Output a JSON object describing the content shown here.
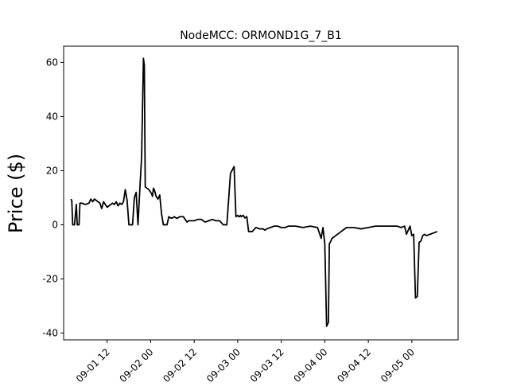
{
  "chart_data": {
    "type": "line",
    "title": "NodeMCC: ORMOND1G_7_B1",
    "xlabel": "",
    "ylabel": "Price ($)",
    "x_ticks": [
      "09-01 12",
      "09-02 00",
      "09-02 12",
      "09-03 00",
      "09-03 12",
      "09-04 00",
      "09-04 12",
      "09-05 00"
    ],
    "x_tick_values": [
      "2022-09-01 12:00",
      "2022-09-02 00:00",
      "2022-09-02 12:00",
      "2022-09-03 00:00",
      "2022-09-03 12:00",
      "2022-09-04 00:00",
      "2022-09-04 12:00",
      "2022-09-05 00:00"
    ],
    "y_ticks": [
      -40,
      -20,
      0,
      20,
      40,
      60
    ],
    "ylim": [
      -42.5,
      66
    ],
    "xlim": [
      "2022-09-01 00:00",
      "2022-09-05 12:45"
    ],
    "grid": false,
    "legend": false,
    "line_color": "#000000",
    "series": [
      {
        "x": [
          "2022-09-01 02:00",
          "2022-09-01 02:15",
          "2022-09-01 02:30",
          "2022-09-01 03:00",
          "2022-09-01 03:30",
          "2022-09-01 03:45",
          "2022-09-01 04:15",
          "2022-09-01 04:30",
          "2022-09-01 05:00",
          "2022-09-01 06:00",
          "2022-09-01 07:00",
          "2022-09-01 07:30",
          "2022-09-01 08:00",
          "2022-09-01 08:30",
          "2022-09-01 09:00",
          "2022-09-01 10:00",
          "2022-09-01 10:30",
          "2022-09-01 11:00",
          "2022-09-01 11:30",
          "2022-09-01 12:00",
          "2022-09-01 12:30",
          "2022-09-01 13:00",
          "2022-09-01 13:30",
          "2022-09-01 14:00",
          "2022-09-01 14:30",
          "2022-09-01 15:00",
          "2022-09-01 15:30",
          "2022-09-01 16:00",
          "2022-09-01 16:30",
          "2022-09-01 17:00",
          "2022-09-01 17:30",
          "2022-09-01 18:00",
          "2022-09-01 18:30",
          "2022-09-01 19:00",
          "2022-09-01 19:30",
          "2022-09-01 20:00",
          "2022-09-01 20:15",
          "2022-09-01 20:30",
          "2022-09-01 21:00",
          "2022-09-01 21:30",
          "2022-09-01 22:00",
          "2022-09-01 22:15",
          "2022-09-01 22:30",
          "2022-09-01 23:00",
          "2022-09-01 23:30",
          "2022-09-02 00:00",
          "2022-09-02 00:15",
          "2022-09-02 00:30",
          "2022-09-02 00:45",
          "2022-09-02 01:00",
          "2022-09-02 01:30",
          "2022-09-02 02:00",
          "2022-09-02 02:30",
          "2022-09-02 03:00",
          "2022-09-02 03:30",
          "2022-09-02 04:00",
          "2022-09-02 04:30",
          "2022-09-02 05:00",
          "2022-09-02 05:30",
          "2022-09-02 06:00",
          "2022-09-02 06:30",
          "2022-09-02 07:00",
          "2022-09-02 07:30",
          "2022-09-02 08:00",
          "2022-09-02 08:30",
          "2022-09-02 09:00",
          "2022-09-02 09:30",
          "2022-09-02 10:00",
          "2022-09-02 10:30",
          "2022-09-02 11:00",
          "2022-09-02 11:30",
          "2022-09-02 12:00",
          "2022-09-02 13:00",
          "2022-09-02 14:00",
          "2022-09-02 15:00",
          "2022-09-02 16:00",
          "2022-09-02 17:00",
          "2022-09-02 18:00",
          "2022-09-02 19:00",
          "2022-09-02 20:00",
          "2022-09-02 21:00",
          "2022-09-02 22:00",
          "2022-09-02 23:00",
          "2022-09-02 23:30",
          "2022-09-03 00:00",
          "2022-09-03 00:15",
          "2022-09-03 00:30",
          "2022-09-03 00:45",
          "2022-09-03 01:00",
          "2022-09-03 01:30",
          "2022-09-03 02:00",
          "2022-09-03 02:30",
          "2022-09-03 03:00",
          "2022-09-03 04:00",
          "2022-09-03 05:00",
          "2022-09-03 06:00",
          "2022-09-03 07:00",
          "2022-09-03 07:30",
          "2022-09-03 08:00",
          "2022-09-03 09:00",
          "2022-09-03 10:00",
          "2022-09-03 11:00",
          "2022-09-03 12:00",
          "2022-09-03 13:00",
          "2022-09-03 14:00",
          "2022-09-03 16:00",
          "2022-09-03 18:00",
          "2022-09-03 20:00",
          "2022-09-03 22:00",
          "2022-09-03 23:00",
          "2022-09-03 23:30",
          "2022-09-04 00:00",
          "2022-09-04 00:30",
          "2022-09-04 01:00",
          "2022-09-04 01:15",
          "2022-09-04 01:30",
          "2022-09-04 02:00",
          "2022-09-04 02:30",
          "2022-09-04 03:00",
          "2022-09-04 03:30",
          "2022-09-04 04:00",
          "2022-09-04 04:30",
          "2022-09-04 05:00",
          "2022-09-04 06:00",
          "2022-09-04 08:00",
          "2022-09-04 10:00",
          "2022-09-04 12:00",
          "2022-09-04 14:00",
          "2022-09-04 16:00",
          "2022-09-04 18:00",
          "2022-09-04 20:00",
          "2022-09-04 21:00",
          "2022-09-04 22:00",
          "2022-09-04 22:30",
          "2022-09-04 23:00",
          "2022-09-04 23:30",
          "2022-09-05 00:00",
          "2022-09-05 00:30",
          "2022-09-05 01:00",
          "2022-09-05 01:30",
          "2022-09-05 02:00",
          "2022-09-05 02:30",
          "2022-09-05 03:00",
          "2022-09-05 03:30",
          "2022-09-05 04:00",
          "2022-09-05 05:00",
          "2022-09-05 06:00",
          "2022-09-05 07:00"
        ],
        "y": [
          9.5,
          9,
          0,
          0,
          7.5,
          0,
          0,
          8,
          8,
          7.5,
          8,
          9.5,
          8.5,
          9.5,
          9,
          8,
          6,
          8.5,
          7.5,
          6.5,
          7,
          7.5,
          8,
          7.5,
          8.5,
          7,
          8,
          7.5,
          8.5,
          13,
          9,
          0,
          0,
          0,
          10,
          12,
          6,
          0,
          13,
          25,
          61.5,
          59,
          14,
          13.5,
          13,
          12,
          11.5,
          10.5,
          13.5,
          13,
          10.5,
          9.5,
          11,
          4,
          0,
          0,
          0,
          3,
          2.5,
          2.5,
          3,
          2.5,
          2.5,
          3,
          3,
          3,
          2,
          1,
          1.5,
          1.5,
          1.5,
          1.5,
          2,
          2,
          1,
          1.5,
          2,
          1.5,
          1.5,
          0,
          0,
          19,
          21.5,
          3,
          3.5,
          3,
          3,
          3.5,
          3,
          3.5,
          2.5,
          3,
          -2.5,
          -2.5,
          -1,
          -1.5,
          -1.5,
          -2,
          -1.5,
          -1,
          -0.5,
          -0.5,
          -1,
          -1,
          -0.5,
          -0.5,
          -1,
          -0.5,
          -1,
          -5,
          -1,
          -7,
          -37.5,
          -36,
          -7,
          -6.5,
          -5,
          -4.5,
          -4,
          -3.5,
          -3,
          -2.5,
          -2,
          -1,
          -1,
          -1.5,
          -1,
          -0.5,
          -0.5,
          -0.5,
          -0.5,
          -1,
          -0.5,
          -3.5,
          -2,
          -0.5,
          -4,
          -3.5,
          -27,
          -26.5,
          -6.5,
          -6,
          -4,
          -3.5,
          -4,
          -3.5,
          -3,
          -2.5
        ]
      }
    ]
  }
}
